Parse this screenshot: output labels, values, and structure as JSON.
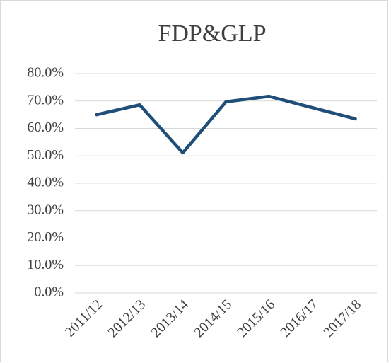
{
  "chart_data": {
    "type": "line",
    "title": "FDP&GLP",
    "categories": [
      "2011/12",
      "2012/13",
      "2013/14",
      "2014/15",
      "2015/16",
      "2016/17",
      "2017/18"
    ],
    "series": [
      {
        "name": "FDP&GLP",
        "color": "#1f4e79",
        "values": [
          65.0,
          68.6,
          51.1,
          69.7,
          71.7,
          67.6,
          63.5
        ]
      }
    ],
    "ylim": [
      0,
      80
    ],
    "yticks": [
      {
        "value": 0,
        "label": "0.0%"
      },
      {
        "value": 10,
        "label": "10.0%"
      },
      {
        "value": 20,
        "label": "20.0%"
      },
      {
        "value": 30,
        "label": "30.0%"
      },
      {
        "value": 40,
        "label": "40.0%"
      },
      {
        "value": 50,
        "label": "50.0%"
      },
      {
        "value": 60,
        "label": "60.0%"
      },
      {
        "value": 70,
        "label": "70.0%"
      },
      {
        "value": 80,
        "label": "80.0%"
      }
    ],
    "grid": true
  }
}
